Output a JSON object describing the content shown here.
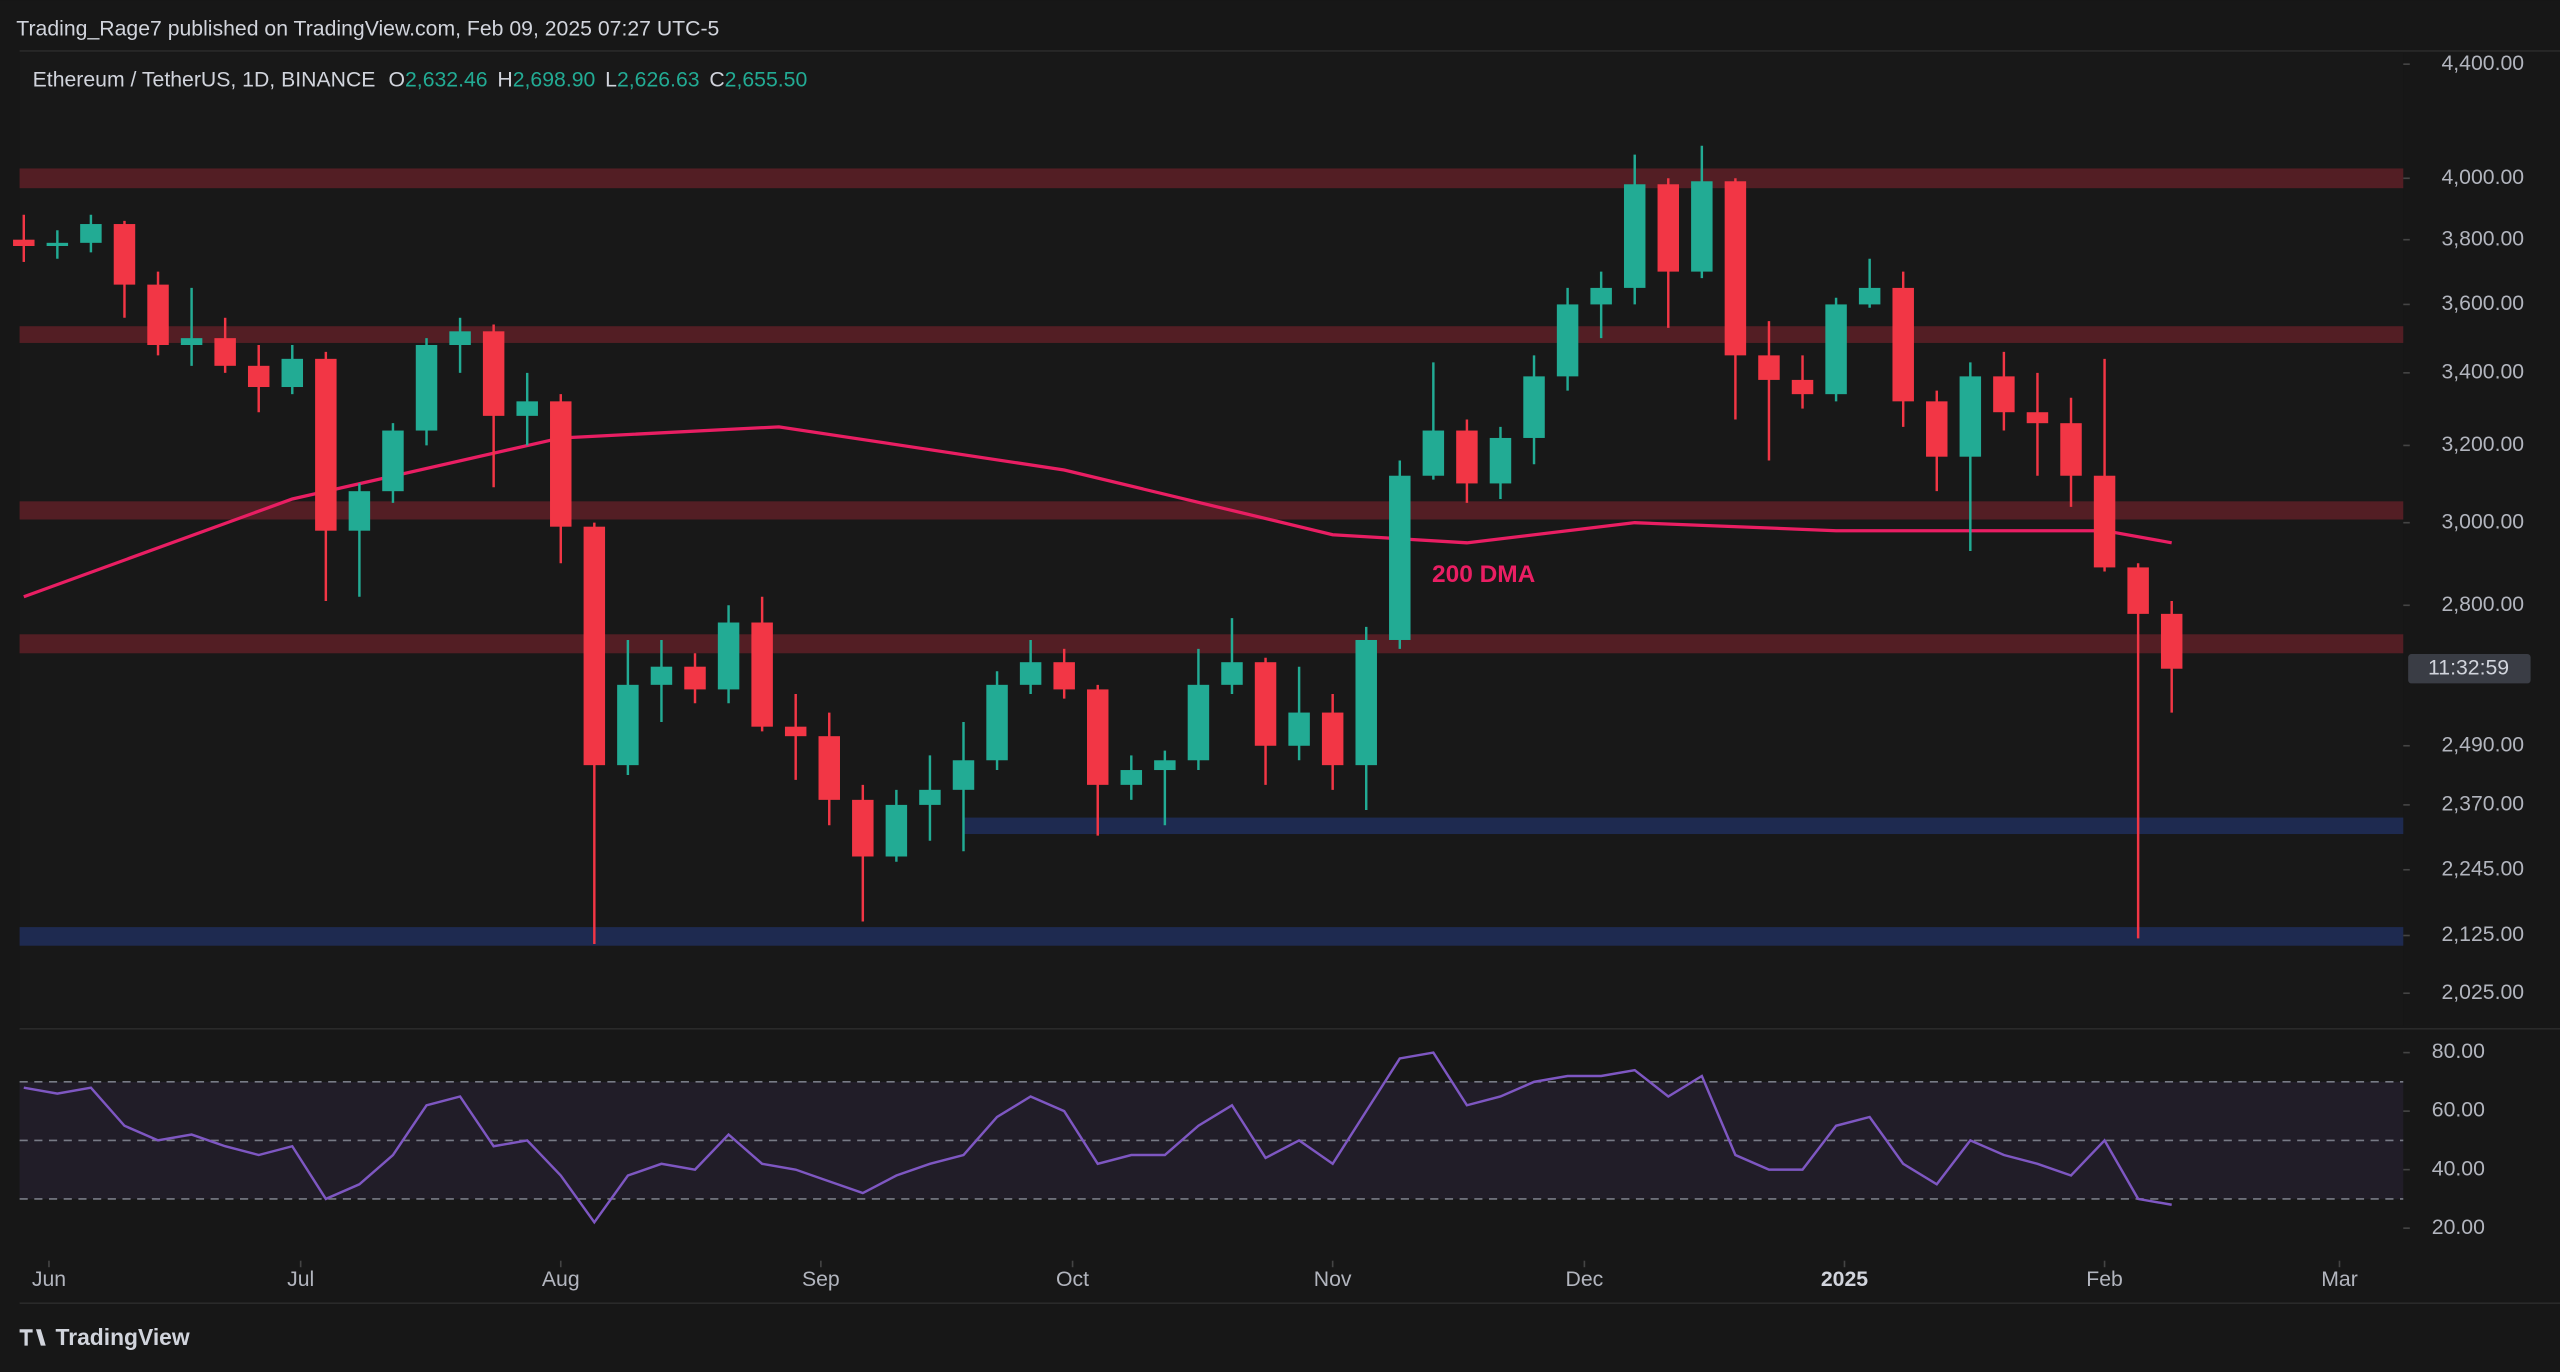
{
  "header": {
    "title": "Trading_Rage7 published on TradingView.com, Feb 09, 2025 07:27 UTC-5",
    "brand": "TradingView"
  },
  "legend": {
    "symbol": "Ethereum / TetherUS, 1D, BINANCE",
    "fields": [
      {
        "label": "O",
        "value": "2,632.46"
      },
      {
        "label": "H",
        "value": "2,698.90"
      },
      {
        "label": "L",
        "value": "2,626.63"
      },
      {
        "label": "C",
        "value": "2,655.50"
      }
    ]
  },
  "chart_data": [
    {
      "type": "candlestick",
      "log_scale": true,
      "up_color": "#22ab94",
      "down_color": "#f23645",
      "categories": [
        null,
        null,
        null,
        null,
        null,
        null,
        null,
        null,
        null,
        null,
        null,
        null,
        null,
        null,
        null,
        null,
        null,
        null,
        null,
        null,
        null,
        null,
        null,
        null,
        null,
        null,
        null,
        null,
        null,
        null,
        null,
        null,
        null,
        null,
        null,
        null,
        null,
        null,
        null,
        null,
        null,
        null,
        null,
        null,
        null,
        null,
        null,
        null,
        null,
        null,
        null,
        null,
        null,
        null,
        null,
        null,
        null,
        null,
        null,
        null,
        null,
        null,
        null,
        null,
        null
      ],
      "open": [
        3800,
        3780,
        3790,
        3850,
        3660,
        3480,
        3500,
        3420,
        3360,
        3440,
        2980,
        3080,
        3240,
        3480,
        3520,
        3280,
        3320,
        2990,
        2450,
        2620,
        2660,
        2610,
        2760,
        2530,
        2510,
        2380,
        2270,
        2370,
        2400,
        2460,
        2620,
        2670,
        2610,
        2410,
        2440,
        2460,
        2620,
        2670,
        2490,
        2560,
        2450,
        2720,
        3120,
        3240,
        3100,
        3220,
        3390,
        3600,
        3650,
        3980,
        3700,
        3990,
        3450,
        3380,
        3340,
        3600,
        3650,
        3320,
        3170,
        3390,
        3290,
        3260,
        3120,
        2890,
        2780
      ],
      "high": [
        3880,
        3830,
        3880,
        3860,
        3700,
        3650,
        3560,
        3480,
        3480,
        3460,
        3100,
        3260,
        3500,
        3560,
        3540,
        3400,
        3340,
        3000,
        2720,
        2720,
        2690,
        2800,
        2820,
        2600,
        2560,
        2410,
        2400,
        2470,
        2540,
        2650,
        2720,
        2700,
        2620,
        2470,
        2480,
        2700,
        2770,
        2680,
        2660,
        2600,
        2750,
        3160,
        3430,
        3270,
        3250,
        3450,
        3650,
        3700,
        4080,
        4000,
        4110,
        4000,
        3550,
        3450,
        3620,
        3740,
        3700,
        3350,
        3430,
        3460,
        3400,
        3330,
        3440,
        2900,
        2810
      ],
      "low": [
        3730,
        3740,
        3760,
        3560,
        3450,
        3420,
        3400,
        3290,
        3340,
        2810,
        2820,
        3050,
        3200,
        3400,
        3090,
        3200,
        2900,
        2110,
        2430,
        2540,
        2580,
        2580,
        2520,
        2420,
        2330,
        2150,
        2260,
        2300,
        2280,
        2440,
        2600,
        2590,
        2310,
        2380,
        2330,
        2440,
        2600,
        2410,
        2460,
        2400,
        2360,
        2700,
        3110,
        3050,
        3060,
        3150,
        3350,
        3500,
        3600,
        3530,
        3680,
        3270,
        3160,
        3300,
        3320,
        3590,
        3250,
        3080,
        2930,
        3240,
        3120,
        3040,
        2880,
        2120,
        2560
      ],
      "close": [
        3780,
        3790,
        3850,
        3660,
        3480,
        3500,
        3420,
        3360,
        3440,
        2980,
        3080,
        3240,
        3480,
        3520,
        3280,
        3320,
        2990,
        2450,
        2620,
        2660,
        2610,
        2760,
        2530,
        2510,
        2380,
        2270,
        2370,
        2400,
        2460,
        2620,
        2670,
        2610,
        2410,
        2440,
        2460,
        2620,
        2670,
        2490,
        2560,
        2450,
        2720,
        3120,
        3240,
        3100,
        3220,
        3390,
        3600,
        3650,
        3980,
        3700,
        3990,
        3450,
        3380,
        3340,
        3600,
        3650,
        3320,
        3170,
        3390,
        3290,
        3260,
        3120,
        2890,
        2780,
        2655.5
      ],
      "ylim": [
        1971,
        4443
      ],
      "yticks": [
        {
          "value": 4400,
          "label": "4,400.00"
        },
        {
          "value": 4000,
          "label": "4,000.00"
        },
        {
          "value": 3800,
          "label": "3,800.00"
        },
        {
          "value": 3600,
          "label": "3,600.00"
        },
        {
          "value": 3400,
          "label": "3,400.00"
        },
        {
          "value": 3200,
          "label": "3,200.00"
        },
        {
          "value": 3000,
          "label": "3,000.00"
        },
        {
          "value": 2800,
          "label": "2,800.00"
        },
        {
          "value": 2490,
          "label": "2,490.00"
        },
        {
          "value": 2370,
          "label": "2,370.00"
        },
        {
          "value": 2245,
          "label": "2,245.00"
        },
        {
          "value": 2125,
          "label": "2,125.00"
        },
        {
          "value": 2025,
          "label": "2,025.00"
        }
      ],
      "xlim": [
        -0.125,
        70.9
      ],
      "xticks": [
        {
          "value": 0.75,
          "label": "Jun"
        },
        {
          "value": 8.25,
          "label": "Jul"
        },
        {
          "value": 16,
          "label": "Aug"
        },
        {
          "value": 23.75,
          "label": "Sep"
        },
        {
          "value": 31.25,
          "label": "Oct"
        },
        {
          "value": 39,
          "label": "Nov"
        },
        {
          "value": 46.5,
          "label": "Dec"
        },
        {
          "value": 54.25,
          "label": "2025"
        },
        {
          "value": 62,
          "label": "Feb"
        },
        {
          "value": 69,
          "label": "Mar"
        }
      ],
      "zones": [
        {
          "low": 3967,
          "high": 4033,
          "color": "#5a1f26"
        },
        {
          "low": 3486,
          "high": 3535,
          "color": "#5a1f26"
        },
        {
          "low": 3008,
          "high": 3054,
          "color": "#5a1f26"
        },
        {
          "low": 2690,
          "high": 2733,
          "color": "#5a1f26"
        },
        {
          "low": 2313,
          "high": 2345,
          "color": "#1f2c57",
          "start": 28
        },
        {
          "low": 2107,
          "high": 2140,
          "color": "#1f2c57"
        }
      ],
      "moving_average": {
        "label": "200 DMA",
        "color": "#e91e63",
        "x": [
          0,
          8,
          16,
          22.5,
          31,
          39,
          43,
          48,
          54,
          62,
          64
        ],
        "values": [
          2820,
          3060,
          3220,
          3250,
          3135,
          2970,
          2950,
          3000,
          2980,
          2980,
          2950
        ],
        "label_x": 43.5,
        "label_y": 2870
      },
      "countdown": "11:32:59"
    },
    {
      "type": "line",
      "color": "#7e57c2",
      "values": [
        68,
        66,
        68,
        55,
        50,
        52,
        48,
        45,
        48,
        30,
        35,
        45,
        62,
        65,
        48,
        50,
        38,
        22,
        38,
        42,
        40,
        52,
        42,
        40,
        36,
        32,
        38,
        42,
        45,
        58,
        65,
        60,
        42,
        45,
        45,
        55,
        62,
        44,
        50,
        42,
        60,
        78,
        80,
        62,
        65,
        70,
        72,
        72,
        74,
        65,
        72,
        45,
        40,
        40,
        55,
        58,
        42,
        35,
        50,
        45,
        42,
        38,
        50,
        30,
        28
      ],
      "ylim": [
        10,
        87
      ],
      "yticks": [
        {
          "value": 80,
          "label": "80.00"
        },
        {
          "value": 60,
          "label": "60.00"
        },
        {
          "value": 40,
          "label": "40.00"
        },
        {
          "value": 20,
          "label": "20.00"
        }
      ],
      "levels": [
        70,
        50,
        30
      ],
      "xlim": [
        -0.125,
        70.9
      ]
    }
  ]
}
